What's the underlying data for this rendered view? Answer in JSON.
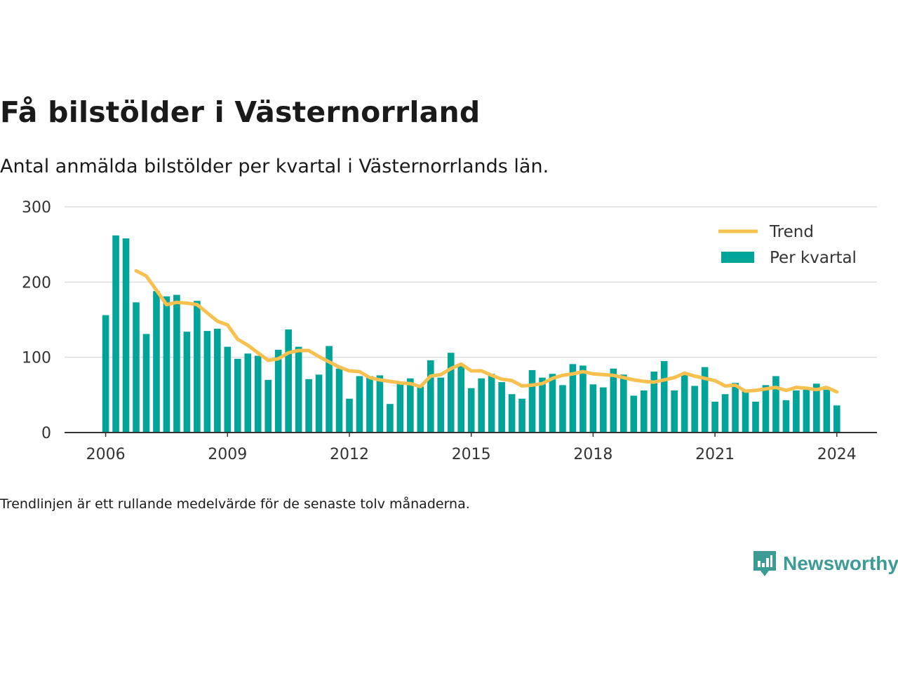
{
  "title": "Få bilstölder i Västernorrland",
  "subtitle": "Antal anmälda bilstölder per kvartal i Västernorrlands län.",
  "note": "Trendlinjen är ett rullande medelvärde för de senaste tolv månaderna.",
  "brand": {
    "name": "Newsworthy",
    "color": "#3d9b95",
    "icon": "newsworthy-logo-icon"
  },
  "chart_data": {
    "type": "bar",
    "x_start": 2006.0,
    "x_step": 0.25,
    "xticks": [
      "2006",
      "2009",
      "2012",
      "2015",
      "2018",
      "2021",
      "2024"
    ],
    "yticks": [
      0,
      100,
      200,
      300
    ],
    "ylim": [
      0,
      300
    ],
    "grid": true,
    "legend_position": "top-right",
    "series": [
      {
        "name": "Per kvartal",
        "type": "bar",
        "color": "#00a499",
        "values": [
          156,
          262,
          258,
          173,
          131,
          188,
          181,
          183,
          134,
          175,
          135,
          138,
          114,
          98,
          105,
          102,
          70,
          110,
          137,
          114,
          71,
          77,
          115,
          85,
          45,
          75,
          75,
          76,
          38,
          67,
          72,
          61,
          96,
          73,
          106,
          88,
          59,
          72,
          78,
          67,
          51,
          45,
          83,
          73,
          78,
          63,
          91,
          89,
          64,
          60,
          85,
          77,
          49,
          56,
          81,
          95,
          56,
          77,
          62,
          87,
          41,
          51,
          66,
          56,
          41,
          63,
          75,
          43,
          56,
          57,
          65,
          57,
          36
        ]
      },
      {
        "name": "Trend",
        "type": "line",
        "color": "#f7c04f",
        "start_index": 3,
        "values": [
          215,
          208,
          189,
          170,
          173,
          172,
          170,
          159,
          148,
          143,
          124,
          116,
          106,
          96,
          98,
          106,
          109,
          109,
          101,
          94,
          87,
          82,
          81,
          73,
          70,
          68,
          66,
          65,
          61,
          75,
          77,
          85,
          91,
          82,
          82,
          76,
          71,
          69,
          62,
          63,
          65,
          72,
          76,
          78,
          81,
          78,
          77,
          76,
          73,
          70,
          68,
          67,
          70,
          73,
          79,
          75,
          72,
          69,
          62,
          63,
          55,
          56,
          58,
          60,
          56,
          60,
          59,
          57,
          60,
          54
        ]
      }
    ]
  }
}
